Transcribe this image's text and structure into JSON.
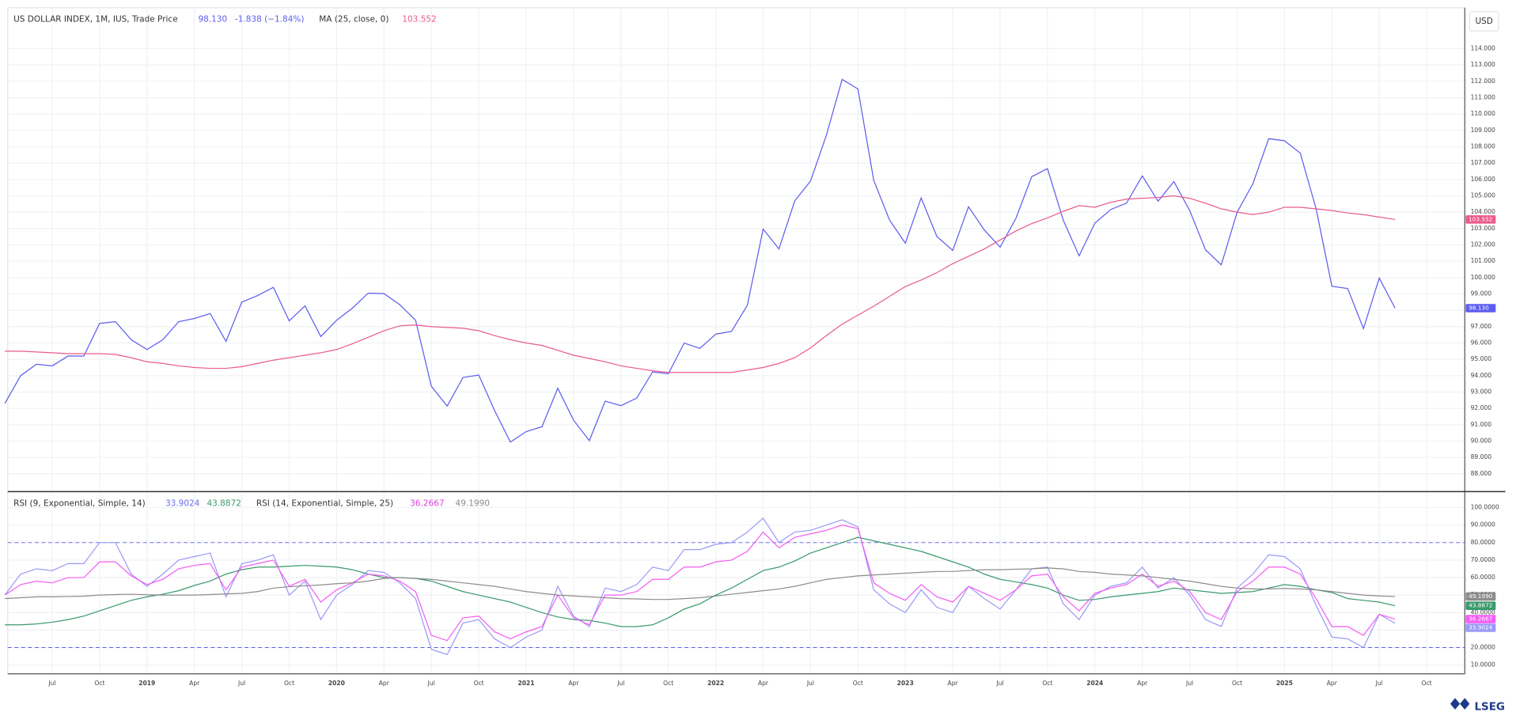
{
  "header": {
    "currency": "USD",
    "logo": "LSEG"
  },
  "chart_data": {
    "type": "line",
    "categories": [
      null,
      null,
      null,
      "Jul",
      null,
      null,
      "Oct",
      null,
      null,
      "2019",
      null,
      null,
      "Apr",
      null,
      null,
      "Jul",
      null,
      null,
      "Oct",
      null,
      null,
      "2020",
      null,
      null,
      "Apr",
      null,
      null,
      "Jul",
      null,
      null,
      "Oct",
      null,
      null,
      "2021",
      null,
      null,
      "Apr",
      null,
      null,
      "Jul",
      null,
      null,
      "Oct",
      null,
      null,
      "2022",
      null,
      null,
      "Apr",
      null,
      null,
      "Jul",
      null,
      null,
      "Oct",
      null,
      null,
      "2023",
      null,
      null,
      "Apr",
      null,
      null,
      "Jul",
      null,
      null,
      "Oct",
      null,
      null,
      "2024",
      null,
      null,
      "Apr",
      null,
      null,
      "Jul",
      null,
      null,
      "Oct",
      null,
      null,
      "2025",
      null,
      null,
      "Apr",
      null,
      null,
      "Jul",
      null,
      null,
      "Oct",
      null,
      null
    ],
    "grid": true,
    "panels": [
      {
        "ylim": [
          87,
          116.5
        ],
        "yticks": [
          {
            "value": 88,
            "label": "88.000"
          },
          {
            "value": 89,
            "label": "89.000"
          },
          {
            "value": 90,
            "label": "90.000"
          },
          {
            "value": 91,
            "label": "91.000"
          },
          {
            "value": 92,
            "label": "92.000"
          },
          {
            "value": 93,
            "label": "93.000"
          },
          {
            "value": 94,
            "label": "94.000"
          },
          {
            "value": 95,
            "label": "95.000"
          },
          {
            "value": 96,
            "label": "96.000"
          },
          {
            "value": 97,
            "label": "97.000"
          },
          {
            "value": 98,
            "label": "98.000"
          },
          {
            "value": 99,
            "label": "99.000"
          },
          {
            "value": 100,
            "label": "100.000"
          },
          {
            "value": 101,
            "label": "101.000"
          },
          {
            "value": 102,
            "label": "102.000"
          },
          {
            "value": 103,
            "label": "103.000"
          },
          {
            "value": 104,
            "label": "104.000"
          },
          {
            "value": 105,
            "label": "105.000"
          },
          {
            "value": 106,
            "label": "106.000"
          },
          {
            "value": 107,
            "label": "107.000"
          },
          {
            "value": 108,
            "label": "108.000"
          },
          {
            "value": 109,
            "label": "109.000"
          },
          {
            "value": 110,
            "label": "110.000"
          },
          {
            "value": 111,
            "label": "111.000"
          },
          {
            "value": 112,
            "label": "112.000"
          },
          {
            "value": 113,
            "label": "113.000"
          },
          {
            "value": 114,
            "label": "114.000"
          }
        ],
        "change": "-1.838 (−1.84%)",
        "series": [
          {
            "name": "US DOLLAR INDEX, 1M, IUS, Trade Price",
            "color": "#5c5cf0",
            "last_label": "98.130",
            "values": [
              92.3,
              94.0,
              94.7,
              94.6,
              95.2,
              95.2,
              97.2,
              97.3,
              96.2,
              95.6,
              96.2,
              97.3,
              97.5,
              97.8,
              96.1,
              98.5,
              98.9,
              99.4,
              97.35,
              98.27,
              96.39,
              97.39,
              98.13,
              99.05,
              99.02,
              98.34,
              97.39,
              93.35,
              92.14,
              93.89,
              94.04,
              91.87,
              89.94,
              90.58,
              90.88,
              93.23,
              91.28,
              90.03,
              92.44,
              92.17,
              92.63,
              94.23,
              94.12,
              95.99,
              95.67,
              96.54,
              96.71,
              98.31,
              102.96,
              101.75,
              104.69,
              105.9,
              108.7,
              112.12,
              111.53,
              105.95,
              103.52,
              102.1,
              104.87,
              102.51,
              101.66,
              104.33,
              102.91,
              101.86,
              103.62,
              106.17,
              106.66,
              103.5,
              101.33,
              103.33,
              104.16,
              104.55,
              106.22,
              104.67,
              105.87,
              104.1,
              101.7,
              100.78,
              103.99,
              105.74,
              108.49,
              108.37,
              107.61,
              104.21,
              99.47,
              99.33,
              96.88,
              99.97,
              98.13,
              null,
              null,
              null,
              null
            ]
          },
          {
            "name": "MA (25, close, 0)",
            "color": "#ec5a8c",
            "last_label": "103.552",
            "values": [
              95.5,
              95.5,
              95.45,
              95.4,
              95.35,
              95.35,
              95.35,
              95.3,
              95.1,
              94.85,
              94.75,
              94.6,
              94.5,
              94.45,
              94.45,
              94.55,
              94.75,
              94.95,
              95.1,
              95.25,
              95.4,
              95.6,
              95.95,
              96.35,
              96.75,
              97.05,
              97.1,
              97.0,
              96.95,
              96.9,
              96.75,
              96.45,
              96.2,
              96.0,
              95.85,
              95.55,
              95.25,
              95.05,
              94.85,
              94.6,
              94.45,
              94.3,
              94.2,
              94.2,
              94.2,
              94.2,
              94.2,
              94.35,
              94.5,
              94.75,
              95.1,
              95.7,
              96.45,
              97.15,
              97.7,
              98.25,
              98.85,
              99.45,
              99.85,
              100.3,
              100.85,
              101.3,
              101.75,
              102.3,
              102.85,
              103.3,
              103.65,
              104.05,
              104.4,
              104.3,
              104.6,
              104.8,
              104.85,
              104.9,
              105.0,
              104.85,
              104.55,
              104.2,
              104.0,
              103.85,
              104.0,
              104.3,
              104.3,
              104.2,
              104.1,
              103.95,
              103.85,
              103.7,
              103.552,
              null,
              null,
              null,
              null
            ]
          }
        ]
      },
      {
        "ylim": [
          5,
          108.3
        ],
        "yticks": [
          {
            "value": 10,
            "label": "10.0000"
          },
          {
            "value": 20,
            "label": "20.0000"
          },
          {
            "value": 30,
            "label": "30.0000"
          },
          {
            "value": 40,
            "label": "40.0000"
          },
          {
            "value": 50,
            "label": "50.0000"
          },
          {
            "value": 60,
            "label": "60.0000"
          },
          {
            "value": 70,
            "label": "70.0000"
          },
          {
            "value": 80,
            "label": "80.0000"
          },
          {
            "value": 90,
            "label": "90.0000"
          },
          {
            "value": 100,
            "label": "100.0000"
          }
        ],
        "hlines": [
          80,
          20
        ],
        "series": [
          {
            "name": "RSI (9, Exponential, Simple, 14)",
            "color": "#9a9af6",
            "last_label": "33.9024",
            "values": [
              50,
              62,
              65,
              64,
              68,
              68,
              80,
              80,
              62,
              55,
              62,
              70,
              72,
              74,
              49,
              68,
              70,
              73,
              50,
              58,
              36,
              50,
              56,
              64,
              63,
              57,
              48,
              19,
              16,
              34,
              36,
              25,
              20,
              26,
              30,
              55,
              38,
              32,
              54,
              52,
              56,
              66,
              64,
              76,
              76,
              79,
              80,
              86,
              94,
              80,
              86,
              87,
              90,
              93,
              89,
              53,
              45,
              40,
              53,
              43,
              40,
              55,
              48,
              42,
              53,
              65,
              66,
              45,
              36,
              50,
              55,
              57,
              66,
              54,
              60,
              50,
              36,
              32,
              54,
              62,
              73,
              72,
              65,
              44,
              26,
              25,
              20,
              39,
              33.9024,
              null,
              null,
              null,
              null
            ]
          },
          {
            "color": "#3a9a6c",
            "last_label": "43.8872",
            "values": [
              33,
              33,
              33.5,
              34.5,
              36,
              38,
              41,
              44,
              47,
              49,
              50.5,
              52.5,
              55.5,
              58,
              62,
              64.5,
              66,
              66,
              66.5,
              67,
              66.5,
              66,
              64.5,
              62,
              60,
              60,
              59.5,
              58,
              55,
              52,
              50,
              48,
              46,
              43,
              40,
              37.5,
              36,
              35.5,
              34,
              32,
              32,
              33,
              37,
              42,
              45,
              50,
              54,
              59,
              64,
              66,
              69.5,
              74,
              77,
              80,
              83,
              81,
              79,
              77,
              75,
              72,
              69,
              66,
              62,
              59,
              57.5,
              56,
              54,
              50,
              47,
              47.5,
              49,
              50,
              51,
              52,
              54,
              53,
              52,
              51,
              51.5,
              52,
              54,
              56,
              55,
              53,
              51.5,
              48,
              47,
              46,
              43.8872,
              null,
              null,
              null,
              null
            ]
          },
          {
            "name": "RSI (14, Exponential, Simple, 25)",
            "color": "#f45cf4",
            "last_label": "36.2667",
            "values": [
              50,
              56,
              58,
              57,
              60,
              60,
              69,
              69,
              61,
              56,
              59,
              65,
              67,
              68,
              53,
              66,
              68,
              70,
              55,
              59,
              46,
              53,
              57,
              62,
              61,
              58,
              52,
              27,
              24,
              37,
              38,
              29,
              25,
              29,
              32,
              50,
              37,
              33,
              50,
              50,
              52,
              59,
              59,
              66,
              66,
              69,
              70,
              75,
              86,
              77,
              83,
              85,
              87,
              90,
              88,
              57,
              51,
              47,
              56,
              49,
              46,
              55,
              51,
              47,
              53,
              61,
              62,
              49,
              41,
              51,
              54,
              56,
              62,
              55,
              58,
              52,
              40,
              36,
              52,
              58,
              66,
              66,
              62,
              48,
              32,
              32,
              27,
              39,
              36.2667,
              null,
              null,
              null,
              null
            ]
          },
          {
            "color": "#8c8c8c",
            "last_label": "49.1990",
            "values": [
              48,
              48.5,
              49,
              49,
              49.2,
              49.4,
              50,
              50.3,
              50.5,
              50.2,
              50,
              50,
              50,
              50.3,
              50.7,
              51,
              52,
              54,
              54.8,
              55.3,
              55.8,
              56.5,
              57,
              58,
              59.5,
              60,
              59.5,
              59,
              58,
              57,
              56,
              55,
              53.5,
              52,
              51,
              50,
              49.5,
              49,
              48.5,
              48,
              47.8,
              47.5,
              47.5,
              48,
              48.5,
              49.5,
              50.5,
              51.5,
              52.5,
              53.5,
              55,
              57,
              59,
              60,
              61,
              61.5,
              62,
              62.5,
              63,
              63.5,
              63.5,
              64,
              64.5,
              64.5,
              64.8,
              65,
              65.5,
              65,
              63.5,
              63,
              62,
              61.5,
              61,
              60,
              59,
              58,
              56.5,
              55,
              54,
              53.5,
              53.5,
              53.8,
              53.5,
              53,
              52,
              51,
              50,
              49.5,
              49.199,
              null,
              null,
              null,
              null
            ]
          }
        ]
      }
    ]
  }
}
